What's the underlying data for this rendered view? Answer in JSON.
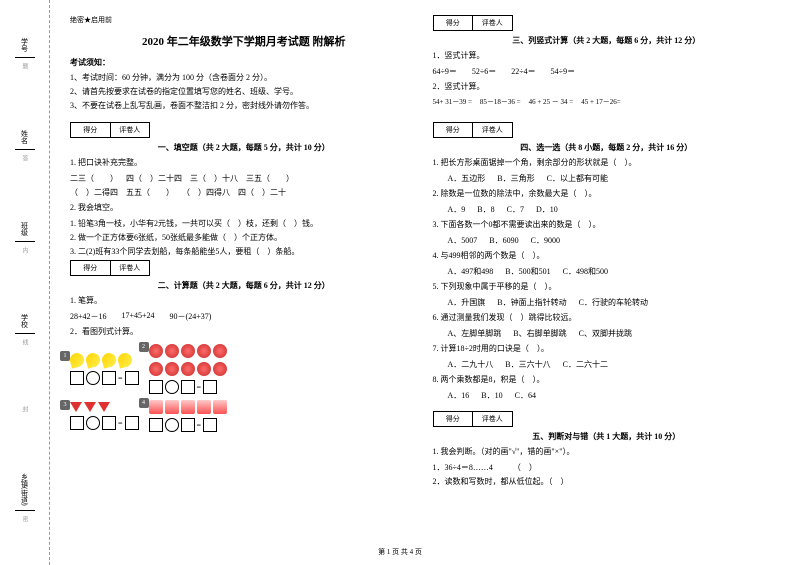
{
  "margin": {
    "labels": [
      "学号",
      "姓名",
      "班级",
      "学校",
      "乡镇(街道)"
    ],
    "vertical_hints": [
      "题",
      "答",
      "内",
      "线",
      "封",
      "密"
    ]
  },
  "header": {
    "secret": "绝密★启用前"
  },
  "title": "2020 年二年级数学下学期月考试题 附解析",
  "notice": {
    "title": "考试须知：",
    "items": [
      "1、考试时间：60 分钟，满分为 100 分（含卷面分 2 分）。",
      "2、请首先按要求在试卷的指定位置填写您的姓名、班级、学号。",
      "3、不要在试卷上乱写乱画，卷面不整洁扣 2 分，密封线外请勿作答。"
    ]
  },
  "score_labels": {
    "score": "得分",
    "grader": "评卷人"
  },
  "sections": {
    "s1": {
      "title": "一、填空题（共 2 大题，每题 5 分，共计 10 分）",
      "q1": "1. 把口诀补充完整。",
      "blanks": [
        "二三（　　）",
        "四（　）二十四",
        "三（　）十八",
        "三五（　　）",
        "（　）二得四",
        "五五（　　）",
        "（　）四得八",
        "四（　）二十"
      ],
      "q2": "2. 我会填空。",
      "sub": [
        "1. 铅笔3角一枝，小华有2元钱，一共可以买（　）枝，还剩（　）钱。",
        "2. 做一个正方体要6张纸，50张纸最多能做（　）个正方体。",
        "3. 二(2)班有33个同学去划船，每条船能坐5人，要租（　）条船。"
      ]
    },
    "s2": {
      "title": "二、计算题（共 2 大题，每题 6 分，共计 12 分）",
      "q1": "1. 笔算。",
      "eq1": [
        "28+42－16",
        "17+45+24",
        "90－(24+37)"
      ],
      "q2": "2．看图列式计算。"
    },
    "s3": {
      "title": "三、列竖式计算（共 2 大题，每题 6 分，共计 12 分）",
      "q1": "1．竖式计算。",
      "eq1": [
        "64÷9＝",
        "52÷6＝",
        "22÷4＝",
        "54÷9＝"
      ],
      "q2": "2．竖式计算。",
      "eq2": [
        "54+ 31－39 =",
        "85－18－36 =",
        "46 + 25 － 34 =",
        "45 + 17－26="
      ]
    },
    "s4": {
      "title": "四、选一选（共 8 小题，每题 2 分，共计 16 分）",
      "items": [
        {
          "q": "1. 把长方形桌面锯掉一个角，剩余部分的形状就是（　）。",
          "opts": [
            "A．五边形",
            "B．三角形",
            "C．以上都有可能"
          ]
        },
        {
          "q": "2. 除数是一位数的除法中，余数最大是（　）。",
          "opts": [
            "A．9",
            "B．8",
            "C．7",
            "D．10"
          ]
        },
        {
          "q": "3. 下面各数一个0都不需要读出来的数是（　）。",
          "opts": [
            "A．5007",
            "B．6090",
            "C．9000"
          ]
        },
        {
          "q": "4. 与499相邻的两个数是（　）。",
          "opts": [
            "A．497和498",
            "B．500和501",
            "C．498和500"
          ]
        },
        {
          "q": "5. 下列现象中属于平移的是（　）。",
          "opts": [
            "A．升国旗",
            "B．钟面上指针转动",
            "C．行驶的车轮转动"
          ]
        },
        {
          "q": "6. 通过测量我们发现（　）跳得比较远。",
          "opts": [
            "A、左脚单脚跳",
            "B、右脚单脚跳",
            "C、双脚并拢跳"
          ]
        },
        {
          "q": "7. 计算18÷2时用的口诀是（　）。",
          "opts": [
            "A．二九十八",
            "B．三六十八",
            "C．二六十二"
          ]
        },
        {
          "q": "8. 两个乘数都是8，积是（　）。",
          "opts": [
            "A．16",
            "B．10",
            "C．64"
          ]
        }
      ]
    },
    "s5": {
      "title": "五、判断对与错（共 1 大题，共计 10 分）",
      "q1": "1. 我会判断。（对的画\"√\"，错的画\"×\"）。",
      "sub": [
        "1．36÷4＝8……4　　　（　）",
        "2．读数和写数时，都从低位起。（　）"
      ]
    }
  },
  "footer": "第 1 页 共 4 页"
}
